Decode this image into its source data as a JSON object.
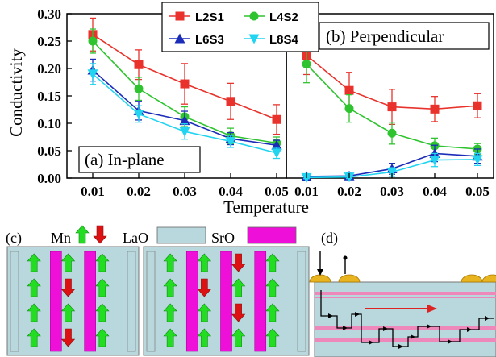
{
  "chart_data": [
    {
      "type": "line",
      "panel_label": "(a) In-plane",
      "x": [
        0.01,
        0.02,
        0.03,
        0.04,
        0.05
      ],
      "xlabel": "Temperature",
      "ylabel": "Conductivity",
      "ylim": [
        0,
        0.3
      ],
      "xticks": [
        "0.01",
        "0.02",
        "0.03",
        "0.04",
        "0.05"
      ],
      "yticks": [
        "0.00",
        "0.05",
        "0.10",
        "0.15",
        "0.20",
        "0.25",
        "0.30"
      ],
      "series": [
        {
          "name": "L2S1",
          "color": "#e8322b",
          "marker": "square",
          "values": [
            0.262,
            0.207,
            0.172,
            0.14,
            0.107
          ],
          "errors": [
            0.03,
            0.027,
            0.037,
            0.033,
            0.027
          ]
        },
        {
          "name": "L4S2",
          "color": "#2fc42f",
          "marker": "circle",
          "values": [
            0.25,
            0.163,
            0.112,
            0.077,
            0.064
          ],
          "errors": [
            0.022,
            0.021,
            0.018,
            0.014,
            0.011
          ]
        },
        {
          "name": "L6S3",
          "color": "#1a2cb8",
          "marker": "triangle-up",
          "values": [
            0.197,
            0.123,
            0.105,
            0.072,
            0.06
          ],
          "errors": [
            0.02,
            0.017,
            0.017,
            0.011,
            0.009
          ]
        },
        {
          "name": "L8S4",
          "color": "#22d4f0",
          "marker": "triangle-down",
          "values": [
            0.19,
            0.117,
            0.085,
            0.067,
            0.046
          ],
          "errors": [
            0.019,
            0.015,
            0.014,
            0.011,
            0.01
          ]
        }
      ]
    },
    {
      "type": "line",
      "panel_label": "(b) Perpendicular",
      "x": [
        0.01,
        0.02,
        0.03,
        0.04,
        0.05
      ],
      "xlabel": "Temperature",
      "ylim": [
        0,
        0.3
      ],
      "xticks": [
        "0.01",
        "0.02",
        "0.03",
        "0.04",
        "0.05"
      ],
      "series": [
        {
          "name": "L2S1",
          "color": "#e8322b",
          "marker": "square",
          "values": [
            0.224,
            0.16,
            0.13,
            0.126,
            0.132
          ],
          "errors": [
            0.035,
            0.033,
            0.032,
            0.023,
            0.022
          ]
        },
        {
          "name": "L4S2",
          "color": "#2fc42f",
          "marker": "circle",
          "values": [
            0.208,
            0.127,
            0.082,
            0.059,
            0.053
          ],
          "errors": [
            0.034,
            0.025,
            0.02,
            0.014,
            0.01
          ]
        },
        {
          "name": "L6S3",
          "color": "#1a2cb8",
          "marker": "triangle-up",
          "values": [
            0.003,
            0.004,
            0.017,
            0.045,
            0.04
          ],
          "errors": [
            0.003,
            0.005,
            0.01,
            0.015,
            0.013
          ]
        },
        {
          "name": "L8S4",
          "color": "#22d4f0",
          "marker": "triangle-down",
          "values": [
            0.001,
            0.002,
            0.011,
            0.033,
            0.034
          ],
          "errors": [
            0.002,
            0.003,
            0.008,
            0.012,
            0.011
          ]
        }
      ]
    }
  ],
  "legend": {
    "placement": "top-center",
    "entries": [
      "L2S1",
      "L4S2",
      "L6S3",
      "L8S4"
    ]
  },
  "panel_c": {
    "label": "(c)",
    "mn_label": "Mn",
    "lao_label": "LaO",
    "sro_label": "SrO",
    "colors": {
      "lao": "#b8d8de",
      "sro": "#ee10d8",
      "up": "#22dd22",
      "down": "#dd1111"
    },
    "structures": [
      {
        "columns": [
          [
            "up",
            "up",
            "up",
            "up"
          ],
          [
            "up",
            "down",
            "up",
            "down"
          ],
          [
            "up",
            "up",
            "up",
            "up"
          ]
        ]
      },
      {
        "columns": [
          [
            "up",
            "up",
            "up",
            "up"
          ],
          [
            "up",
            "down",
            "up",
            "up"
          ],
          [
            "down",
            "up",
            "down",
            "up"
          ],
          [
            "up",
            "up",
            "up",
            "up"
          ]
        ]
      }
    ]
  },
  "panel_d": {
    "label": "(d)",
    "colors": {
      "layer": "#b8d8de",
      "stripe": "#ee88bb",
      "arrow": "#dd2222",
      "contact": "#e8b420"
    }
  }
}
